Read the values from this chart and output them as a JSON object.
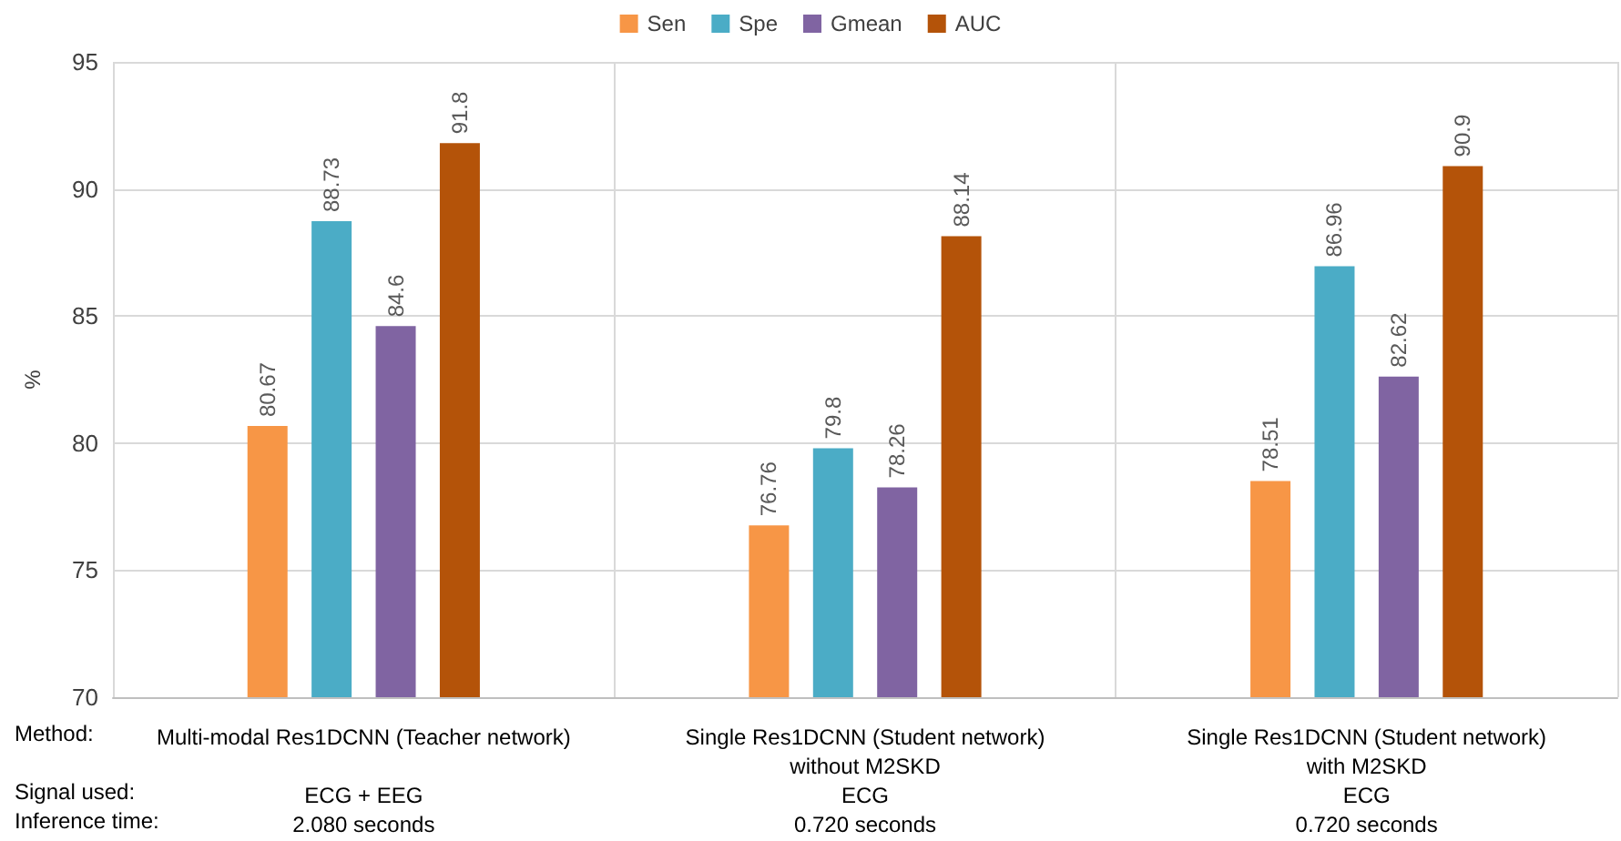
{
  "chart_data": {
    "type": "bar",
    "ylabel": "%",
    "categories": [
      "Multi-modal Res1DCNN (Teacher network)\n\nECG + EEG\n2.080 seconds",
      "Single Res1DCNN (Student network)\nwithout M2SKD\nECG\n0.720 seconds",
      "Single Res1DCNN (Student network)\nwith M2SKD\nECG\n0.720 seconds"
    ],
    "series": [
      {
        "name": "Sen",
        "color": "#f79646",
        "values": [
          80.67,
          76.76,
          78.51
        ]
      },
      {
        "name": "Spe",
        "color": "#4bacc6",
        "values": [
          88.73,
          79.8,
          86.96
        ]
      },
      {
        "name": "Gmean",
        "color": "#8064a2",
        "values": [
          84.6,
          78.26,
          82.62
        ]
      },
      {
        "name": "AUC",
        "color": "#b45309",
        "values": [
          91.8,
          88.14,
          90.9
        ]
      }
    ],
    "ylim": [
      70,
      95
    ],
    "yticks": [
      70,
      75,
      80,
      85,
      90,
      95
    ],
    "annotations": [
      "Method:",
      "Signal used:",
      "Inference time:"
    ],
    "data_labels": true,
    "grid": true,
    "legend": "top"
  }
}
